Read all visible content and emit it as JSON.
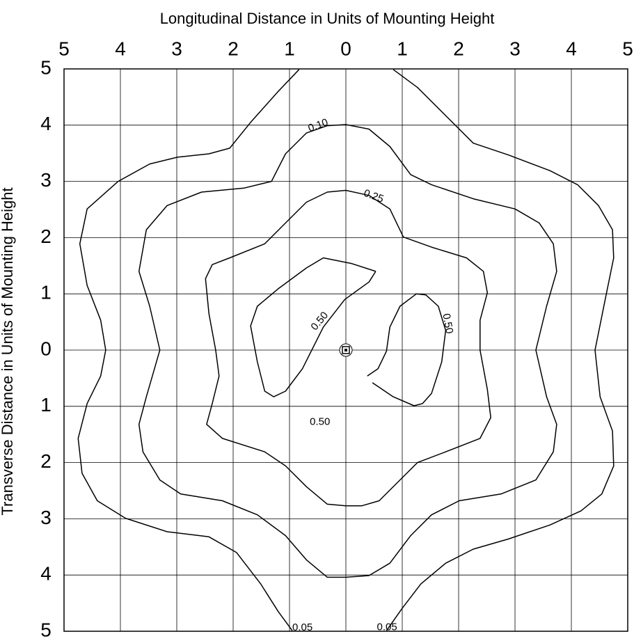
{
  "chart_data": {
    "type": "contour",
    "title": "Longitudinal Distance in Units of Mounting Height",
    "y_label": "Transverse Distance in Units of Mounting Height",
    "xlim": [
      -5,
      5
    ],
    "ylim": [
      -5,
      5
    ],
    "xticks": [
      {
        "value": -5,
        "label": "5"
      },
      {
        "value": -4,
        "label": "4"
      },
      {
        "value": -3,
        "label": "3"
      },
      {
        "value": -2,
        "label": "2"
      },
      {
        "value": -1,
        "label": "1"
      },
      0,
      1,
      2,
      3,
      4,
      5
    ],
    "yticks": [
      5,
      4,
      3,
      2,
      1,
      0,
      {
        "value": -1,
        "label": "1"
      },
      {
        "value": -2,
        "label": "2"
      },
      {
        "value": -3,
        "label": "3"
      },
      {
        "value": -4,
        "label": "4"
      },
      {
        "value": -5,
        "label": "5"
      }
    ],
    "grid": true,
    "color": "#000000",
    "contours": [
      {
        "level": 0.05,
        "x": [
          0.84,
          1.27,
          1.77,
          2.26,
          2.88,
          3.62,
          4.11,
          4.48,
          4.73,
          4.75,
          4.6,
          4.42,
          4.51,
          4.73,
          4.75,
          4.54,
          4.17,
          3.62,
          2.88,
          2.26,
          1.77,
          1.33,
          1.0,
          0.72,
          null,
          -0.95,
          -1.2,
          -1.51,
          -1.94,
          -2.43,
          -3.17,
          -3.91,
          -4.41,
          -4.68,
          -4.75,
          -4.59,
          -4.35,
          -4.26,
          -4.35,
          -4.59,
          -4.72,
          -4.59,
          -4.04,
          -3.48,
          -2.99,
          -2.43,
          -2.06,
          -1.69,
          -1.2,
          -0.83
        ],
        "y": [
          4.99,
          4.67,
          4.17,
          3.68,
          3.47,
          3.19,
          2.94,
          2.57,
          2.14,
          1.64,
          0.9,
          0,
          -0.83,
          -1.44,
          -2.06,
          -2.56,
          -2.86,
          -3.11,
          -3.36,
          -3.54,
          -3.79,
          -4.16,
          -4.59,
          -4.99,
          null,
          -4.99,
          -4.65,
          -4.16,
          -3.6,
          -3.32,
          -3.23,
          -2.99,
          -2.68,
          -2.19,
          -1.57,
          -0.95,
          -0.46,
          0,
          0.53,
          1.15,
          1.89,
          2.51,
          3.0,
          3.31,
          3.43,
          3.49,
          3.59,
          4.05,
          4.6,
          4.99
        ]
      },
      {
        "level": 0.1,
        "x": [
          0,
          0.41,
          0.78,
          1.15,
          1.52,
          2.26,
          3.0,
          3.43,
          3.68,
          3.74,
          3.56,
          3.37,
          3.56,
          3.74,
          3.68,
          3.37,
          2.75,
          2.01,
          1.52,
          1.15,
          0.78,
          0.41,
          0,
          -0.33,
          -0.7,
          -1.07,
          -1.57,
          -2.19,
          -2.93,
          -3.3,
          -3.6,
          -3.67,
          -3.54,
          -3.3,
          -3.48,
          -3.67,
          -3.54,
          -3.17,
          -2.56,
          -1.81,
          -1.32,
          -1.07,
          -0.7,
          -0.33,
          0
        ],
        "y": [
          4.01,
          3.93,
          3.62,
          3.12,
          2.94,
          2.69,
          2.51,
          2.26,
          1.89,
          1.4,
          0.78,
          0,
          -0.83,
          -1.32,
          -1.81,
          -2.31,
          -2.56,
          -2.68,
          -2.93,
          -3.3,
          -3.79,
          -4.01,
          -4.04,
          -4.04,
          -3.73,
          -3.3,
          -2.93,
          -2.68,
          -2.56,
          -2.31,
          -1.81,
          -1.32,
          -0.83,
          0,
          0.78,
          1.4,
          2.14,
          2.57,
          2.81,
          2.88,
          3.0,
          3.49,
          3.86,
          3.99,
          4.01
        ]
      },
      {
        "level": 0.25,
        "x": [
          0,
          0.41,
          0.78,
          1.02,
          1.52,
          2.14,
          2.44,
          2.51,
          2.38,
          2.38,
          2.51,
          2.57,
          2.38,
          1.77,
          1.27,
          0.96,
          0.59,
          0.28,
          0,
          -0.33,
          -0.7,
          -1.07,
          -1.44,
          -2.19,
          -2.47,
          -2.37,
          -2.25,
          -2.31,
          -2.43,
          -2.49,
          -2.37,
          -2.06,
          -1.44,
          -1.07,
          -0.7,
          -0.33,
          0
        ],
        "y": [
          2.84,
          2.75,
          2.51,
          2.01,
          1.83,
          1.64,
          1.4,
          1.02,
          0.53,
          0,
          -0.7,
          -1.2,
          -1.57,
          -1.81,
          -2.0,
          -2.31,
          -2.68,
          -2.77,
          -2.77,
          -2.74,
          -2.43,
          -2.06,
          -1.81,
          -1.57,
          -1.32,
          -0.95,
          -0.46,
          0,
          0.65,
          1.27,
          1.52,
          1.64,
          1.89,
          2.26,
          2.63,
          2.81,
          2.84
        ]
      },
      {
        "level": 0.5,
        "x": [
          0.53,
          0.1,
          -0.4,
          -0.7,
          -1.2,
          -1.57,
          -1.69,
          -1.57,
          -1.44,
          -1.28,
          -1.07,
          -0.77,
          -0.4,
          -0.02,
          0.41,
          0.53,
          null,
          0.38,
          0.57,
          0.72,
          0.78,
          0.96,
          1.25,
          1.42,
          1.64,
          1.77,
          1.7,
          1.52,
          1.36,
          1.21,
          0.84,
          0.47
        ],
        "y": [
          1.4,
          1.54,
          1.64,
          1.46,
          1.09,
          0.78,
          0.43,
          -0.21,
          -0.73,
          -0.83,
          -0.73,
          -0.33,
          0.41,
          0.9,
          1.21,
          1.4,
          null,
          -0.46,
          -0.33,
          -0.02,
          0.41,
          0.78,
          1.0,
          0.98,
          0.78,
          0.35,
          -0.21,
          -0.77,
          -0.95,
          -0.99,
          -0.83,
          -0.58
        ]
      }
    ],
    "annotations": [
      {
        "text": "0.10",
        "x": -0.49,
        "y": 3.99
      },
      {
        "text": "0.25",
        "x": 0.49,
        "y": 2.73
      },
      {
        "text": "0.50",
        "x": -0.46,
        "y": 0.51
      },
      {
        "text": "0.50",
        "x": 1.8,
        "y": 0.47
      },
      {
        "text": "0.50",
        "x": -0.46,
        "y": -1.28
      },
      {
        "text": "0.05",
        "x": -0.77,
        "y": -4.94
      },
      {
        "text": "0.05",
        "x": 0.73,
        "y": -4.93
      }
    ]
  }
}
